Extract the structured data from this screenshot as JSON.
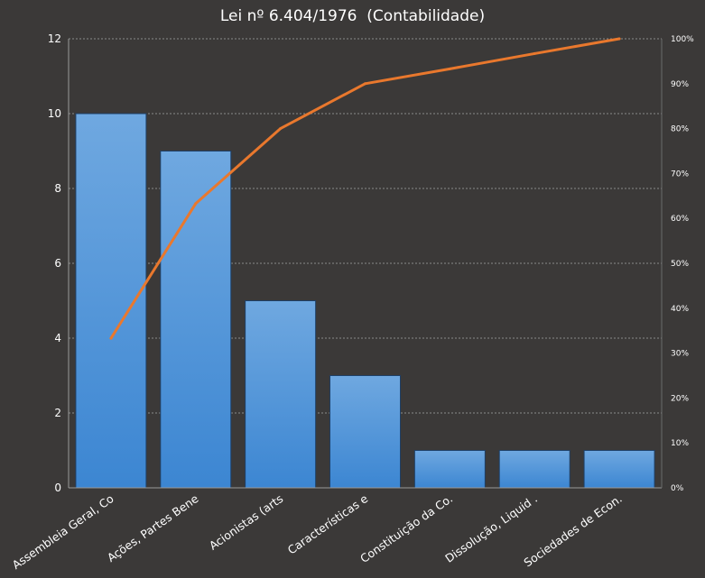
{
  "chart_data": {
    "type": "bar",
    "title": "Lei nº 6.404/1976  (Contabilidade)",
    "categories": [
      "Assembleia Geral, Co",
      "Ações, Partes Bene",
      "Acionistas (arts",
      "Características e",
      "Constituição da Co.",
      "Dissolução, Liquid .",
      "Sociedades de Econ."
    ],
    "series": [
      {
        "type": "bar",
        "values": [
          10,
          9,
          5,
          3,
          1,
          1,
          1
        ]
      },
      {
        "type": "line",
        "axis": "right",
        "values": [
          33.3,
          63.3,
          80.0,
          90.0,
          93.3,
          96.7,
          100.0
        ]
      }
    ],
    "ylim": [
      0,
      12
    ],
    "yticks": [
      0,
      2,
      4,
      6,
      8,
      10,
      12
    ],
    "y2lim": [
      0,
      100
    ],
    "y2ticks": [
      "0%",
      "10%",
      "20%",
      "30%",
      "40%",
      "50%",
      "60%",
      "70%",
      "80%",
      "90%",
      "100%"
    ],
    "grid": true,
    "legend": "none",
    "colors": {
      "bar": "#4a90d6",
      "line": "#e9782d",
      "background": "#3b3938",
      "grid": "#8a8a8a"
    }
  }
}
